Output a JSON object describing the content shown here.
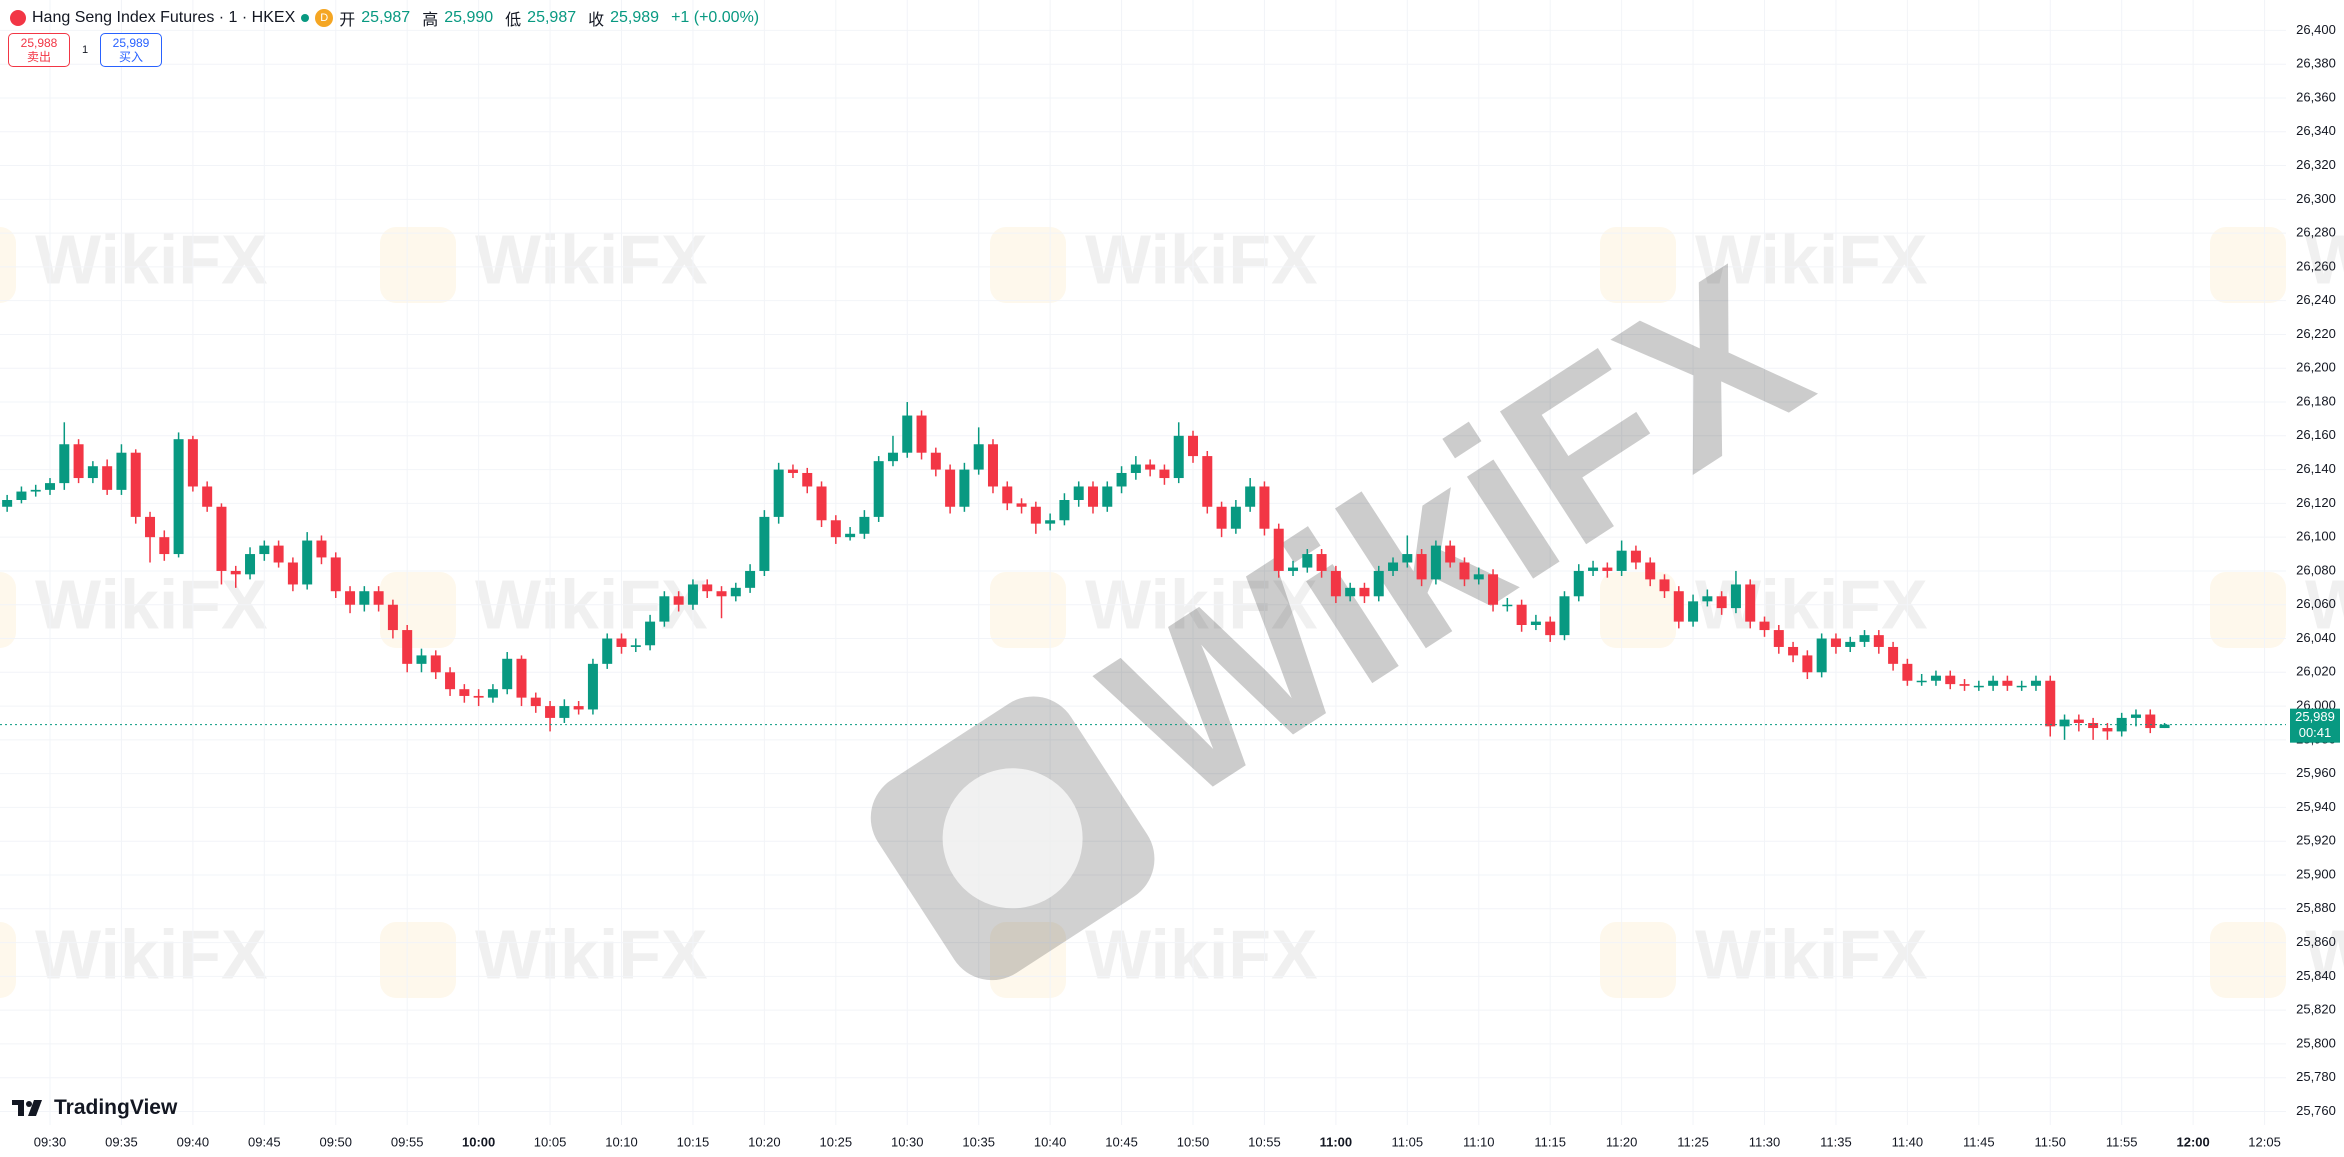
{
  "legend": {
    "symbol": "Hang Seng Index Futures · 1 · HKEX",
    "badge": "D",
    "open_label": "开",
    "open": "25,987",
    "high_label": "高",
    "high": "25,990",
    "low_label": "低",
    "low": "25,987",
    "close_label": "收",
    "close": "25,989",
    "change": "+1 (+0.00%)"
  },
  "trade_buttons": {
    "sell_price": "25,988",
    "sell": "卖出",
    "quantity": "1",
    "buy_price": "25,989",
    "buy": "买入"
  },
  "brand": "TradingView",
  "watermark": "WikiFX",
  "chart_data": {
    "type": "candlestick",
    "up_color": "#089981",
    "down_color": "#f23645",
    "grid": true,
    "last_price_label": "25,989",
    "countdown": "00:41",
    "categories": [
      null,
      null,
      null,
      "09:30",
      null,
      null,
      null,
      null,
      "09:35",
      null,
      null,
      null,
      null,
      "09:40",
      null,
      null,
      null,
      null,
      "09:45",
      null,
      null,
      null,
      null,
      "09:50",
      null,
      null,
      null,
      null,
      "09:55",
      null,
      null,
      null,
      null,
      "10:00",
      null,
      null,
      null,
      null,
      "10:05",
      null,
      null,
      null,
      null,
      "10:10",
      null,
      null,
      null,
      null,
      "10:15",
      null,
      null,
      null,
      null,
      "10:20",
      null,
      null,
      null,
      null,
      "10:25",
      null,
      null,
      null,
      null,
      "10:30",
      null,
      null,
      null,
      null,
      "10:35",
      null,
      null,
      null,
      null,
      "10:40",
      null,
      null,
      null,
      null,
      "10:45",
      null,
      null,
      null,
      null,
      "10:50",
      null,
      null,
      null,
      null,
      "10:55",
      null,
      null,
      null,
      null,
      "11:00",
      null,
      null,
      null,
      null,
      "11:05",
      null,
      null,
      null,
      null,
      "11:10",
      null,
      null,
      null,
      null,
      "11:15",
      null,
      null,
      null,
      null,
      "11:20",
      null,
      null,
      null,
      null,
      "11:25",
      null,
      null,
      null,
      null,
      "11:30",
      null,
      null,
      null,
      null,
      "11:35",
      null,
      null,
      null,
      null,
      "11:40",
      null,
      null,
      null,
      null,
      "11:45",
      null,
      null,
      null,
      null,
      "11:50",
      null,
      null,
      null,
      null,
      "11:55",
      null,
      null,
      null,
      null,
      "12:00",
      null,
      null,
      null,
      null,
      "12:05",
      null
    ],
    "open": [
      26118,
      26122,
      26127,
      26128,
      26132,
      26155,
      26135,
      26142,
      26128,
      26150,
      26112,
      26100,
      26090,
      26158,
      26130,
      26118,
      26080,
      26078,
      26090,
      26095,
      26085,
      26072,
      26098,
      26088,
      26068,
      26060,
      26068,
      26060,
      26045,
      26025,
      26030,
      26020,
      26010,
      26006,
      26005,
      26010,
      26028,
      26005,
      26000,
      25993,
      26000,
      25998,
      26025,
      26040,
      26035,
      26036,
      26050,
      26065,
      26060,
      26072,
      26068,
      26065,
      26070,
      26080,
      26112,
      26140,
      26138,
      26130,
      26110,
      26100,
      26102,
      26112,
      26145,
      26150,
      26172,
      26150,
      26140,
      26118,
      26140,
      26155,
      26130,
      26120,
      26118,
      26108,
      26110,
      26122,
      26130,
      26118,
      26130,
      26138,
      26143,
      26140,
      26135,
      26160,
      26148,
      26118,
      26105,
      26118,
      26130,
      26105,
      26080,
      26082,
      26090,
      26080,
      26065,
      26070,
      26065,
      26080,
      26085,
      26090,
      26075,
      26095,
      26085,
      26075,
      26078,
      26060,
      26060,
      26048,
      26050,
      26042,
      26065,
      26080,
      26082,
      26080,
      26092,
      26085,
      26075,
      26068,
      26050,
      26062,
      26065,
      26058,
      26072,
      26050,
      26045,
      26035,
      26030,
      26020,
      26040,
      26035,
      26038,
      26042,
      26035,
      26025,
      26015,
      26015,
      26018,
      26013,
      26012,
      26012,
      26015,
      26012,
      26012,
      26015,
      25988,
      25992,
      25990,
      25987,
      25985,
      25993,
      25995,
      25987,
      null,
      null,
      null,
      null,
      null,
      null,
      null,
      null
    ],
    "high": [
      26125,
      26130,
      26131,
      26135,
      26168,
      26158,
      26145,
      26146,
      26155,
      26152,
      26115,
      26104,
      26162,
      26160,
      26133,
      26120,
      26083,
      26094,
      26098,
      26098,
      26088,
      26103,
      26101,
      26091,
      26071,
      26071,
      26071,
      26063,
      26048,
      26034,
      26033,
      26023,
      26013,
      26010,
      26013,
      26032,
      26030,
      26008,
      26003,
      26004,
      26003,
      26028,
      26043,
      26043,
      26040,
      26054,
      26068,
      26068,
      26075,
      26075,
      26071,
      26073,
      26084,
      26116,
      26144,
      26143,
      26141,
      26133,
      26113,
      26106,
      26116,
      26148,
      26160,
      26180,
      26175,
      26153,
      26143,
      26144,
      26165,
      26158,
      26133,
      26123,
      26121,
      26114,
      26126,
      26133,
      26133,
      26133,
      26142,
      26148,
      26146,
      26143,
      26168,
      26163,
      26151,
      26121,
      26122,
      26135,
      26133,
      26108,
      26086,
      26093,
      26093,
      26083,
      26073,
      26073,
      26083,
      26088,
      26101,
      26093,
      26098,
      26098,
      26088,
      26082,
      26081,
      26064,
      26063,
      26054,
      26053,
      26068,
      26084,
      26086,
      26085,
      26098,
      26095,
      26088,
      26078,
      26071,
      26066,
      26069,
      26068,
      26080,
      26075,
      26053,
      26048,
      26038,
      26033,
      26043,
      26043,
      26041,
      26045,
      26045,
      26038,
      26028,
      26019,
      26021,
      26021,
      26016,
      26015,
      26018,
      26018,
      26015,
      26018,
      26018,
      25995,
      25995,
      25993,
      25990,
      25996,
      25998,
      25998,
      25990,
      null,
      null,
      null,
      null,
      null,
      null,
      null,
      null
    ],
    "low": [
      26115,
      26120,
      26124,
      26125,
      26128,
      26132,
      26132,
      26125,
      26125,
      26108,
      26085,
      26086,
      26088,
      26127,
      26115,
      26072,
      26070,
      26075,
      26086,
      26082,
      26068,
      26069,
      26084,
      26064,
      26055,
      26056,
      26056,
      26040,
      26020,
      26020,
      26016,
      26006,
      26002,
      26000,
      26002,
      26007,
      26000,
      25996,
      25985,
      25990,
      25995,
      25995,
      26022,
      26031,
      26032,
      26033,
      26047,
      26056,
      26057,
      26064,
      26052,
      26062,
      26067,
      26077,
      26108,
      26135,
      26126,
      26106,
      26096,
      26098,
      26099,
      26109,
      26142,
      26147,
      26146,
      26136,
      26114,
      26115,
      26137,
      26126,
      26116,
      26114,
      26102,
      26104,
      26107,
      26118,
      26114,
      26115,
      26126,
      26134,
      26136,
      26131,
      26132,
      26144,
      26114,
      26100,
      26102,
      26115,
      26101,
      26076,
      26077,
      26079,
      26076,
      26061,
      26062,
      26061,
      26062,
      26077,
      26082,
      26071,
      26072,
      26082,
      26071,
      26072,
      26056,
      26056,
      26044,
      26045,
      26038,
      26039,
      26062,
      26077,
      26076,
      26077,
      26081,
      26071,
      26064,
      26046,
      26047,
      26059,
      26054,
      26055,
      26046,
      26041,
      26031,
      26026,
      26016,
      26017,
      26031,
      26032,
      26035,
      26031,
      26021,
      26012,
      26012,
      26012,
      26010,
      26009,
      26009,
      26009,
      26009,
      26009,
      26009,
      25982,
      25980,
      25985,
      25980,
      25980,
      25982,
      25988,
      25984,
      25987,
      null,
      null,
      null,
      null,
      null,
      null,
      null,
      null
    ],
    "close": [
      26122,
      26127,
      26128,
      26132,
      26155,
      26135,
      26142,
      26128,
      26150,
      26112,
      26100,
      26090,
      26158,
      26130,
      26118,
      26080,
      26078,
      26090,
      26095,
      26085,
      26072,
      26098,
      26088,
      26068,
      26060,
      26068,
      26060,
      26045,
      26025,
      26030,
      26020,
      26010,
      26006,
      26005,
      26010,
      26028,
      26005,
      26000,
      25993,
      26000,
      25998,
      26025,
      26040,
      26035,
      26036,
      26050,
      26065,
      26060,
      26072,
      26068,
      26065,
      26070,
      26080,
      26112,
      26140,
      26138,
      26130,
      26110,
      26100,
      26102,
      26112,
      26145,
      26150,
      26172,
      26150,
      26140,
      26118,
      26140,
      26155,
      26130,
      26120,
      26118,
      26108,
      26110,
      26122,
      26130,
      26118,
      26130,
      26138,
      26143,
      26140,
      26135,
      26160,
      26148,
      26118,
      26105,
      26118,
      26130,
      26105,
      26080,
      26082,
      26090,
      26080,
      26065,
      26070,
      26065,
      26080,
      26085,
      26090,
      26075,
      26095,
      26085,
      26075,
      26078,
      26060,
      26060,
      26048,
      26050,
      26042,
      26065,
      26080,
      26082,
      26080,
      26092,
      26085,
      26075,
      26068,
      26050,
      26062,
      26065,
      26058,
      26072,
      26050,
      26045,
      26035,
      26030,
      26020,
      26040,
      26035,
      26038,
      26042,
      26035,
      26025,
      26015,
      26015,
      26018,
      26013,
      26012,
      26012,
      26015,
      26012,
      26012,
      26015,
      25988,
      25992,
      25990,
      25987,
      25985,
      25993,
      25995,
      25987,
      25989,
      null,
      null,
      null,
      null,
      null,
      null,
      null,
      null
    ],
    "ylim": [
      25752,
      26418
    ],
    "yticks": [
      {
        "value": 25760,
        "label": "25,760"
      },
      {
        "value": 25780,
        "label": "25,780"
      },
      {
        "value": 25800,
        "label": "25,800"
      },
      {
        "value": 25820,
        "label": "25,820"
      },
      {
        "value": 25840,
        "label": "25,840"
      },
      {
        "value": 25860,
        "label": "25,860"
      },
      {
        "value": 25880,
        "label": "25,880"
      },
      {
        "value": 25900,
        "label": "25,900"
      },
      {
        "value": 25920,
        "label": "25,920"
      },
      {
        "value": 25940,
        "label": "25,940"
      },
      {
        "value": 25960,
        "label": "25,960"
      },
      {
        "value": 25980,
        "label": "25,980"
      },
      {
        "value": 26000,
        "label": "26,000"
      },
      {
        "value": 26020,
        "label": "26,020"
      },
      {
        "value": 26040,
        "label": "26,040"
      },
      {
        "value": 26060,
        "label": "26,060"
      },
      {
        "value": 26080,
        "label": "26,080"
      },
      {
        "value": 26100,
        "label": "26,100"
      },
      {
        "value": 26120,
        "label": "26,120"
      },
      {
        "value": 26140,
        "label": "26,140"
      },
      {
        "value": 26160,
        "label": "26,160"
      },
      {
        "value": 26180,
        "label": "26,180"
      },
      {
        "value": 26200,
        "label": "26,200"
      },
      {
        "value": 26220,
        "label": "26,220"
      },
      {
        "value": 26240,
        "label": "26,240"
      },
      {
        "value": 26260,
        "label": "26,260"
      },
      {
        "value": 26280,
        "label": "26,280"
      },
      {
        "value": 26300,
        "label": "26,300"
      },
      {
        "value": 26320,
        "label": "26,320"
      },
      {
        "value": 26340,
        "label": "26,340"
      },
      {
        "value": 26360,
        "label": "26,360"
      },
      {
        "value": 26380,
        "label": "26,380"
      },
      {
        "value": 26400,
        "label": "26,400"
      }
    ]
  }
}
